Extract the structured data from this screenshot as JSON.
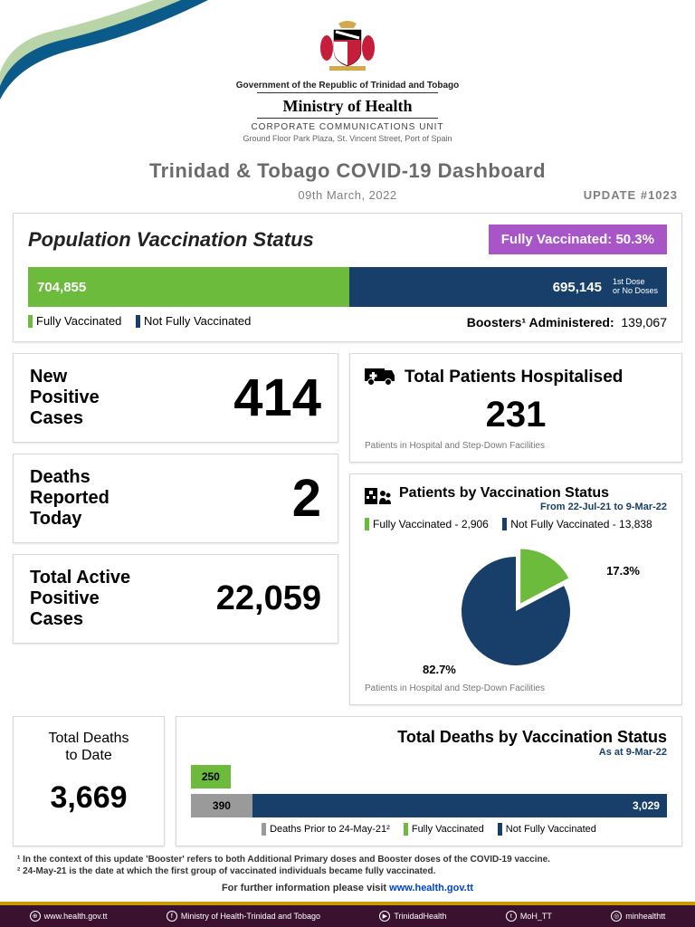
{
  "header": {
    "gov_line": "Government of the Republic of Trinidad and Tobago",
    "ministry": "Ministry of Health",
    "corp_unit": "CORPORATE COMMUNICATIONS UNIT",
    "address": "Ground Floor Park Plaza, St. Vincent Street, Port of Spain"
  },
  "dashboard": {
    "title": "Trinidad & Tobago COVID-19 Dashboard",
    "date": "09th March, 2022",
    "update": "UPDATE #1023"
  },
  "colors": {
    "green": "#6cbb3c",
    "navy": "#173f6a",
    "gray": "#9a9a9a",
    "purple": "#a855c7"
  },
  "vax_status": {
    "title": "Population Vaccination Status",
    "badge": "Fully Vaccinated: 50.3%",
    "fully_count": "704,855",
    "fully_pct": 50.3,
    "not_fully_count": "695,145",
    "not_fully_label": "1st Dose\nor No Doses",
    "leg_fully": "Fully Vaccinated",
    "leg_not": "Not Fully Vaccinated",
    "booster_label": "Boosters¹ Administered:",
    "booster_count": "139,067"
  },
  "cards": {
    "new_positive": {
      "label": "New\nPositive\nCases",
      "value": "414"
    },
    "deaths_today": {
      "label": "Deaths\nReported\nToday",
      "value": "2"
    },
    "active": {
      "label": "Total Active\nPositive\nCases",
      "value": "22,059"
    },
    "hospitalised": {
      "title": "Total Patients Hospitalised",
      "value": "231",
      "note": "Patients in Hospital and Step-Down Facilities"
    }
  },
  "pvs": {
    "title": "Patients by Vaccination Status",
    "date_range": "From 22-Jul-21 to 9-Mar-22",
    "fully_label": "Fully Vaccinated - 2,906",
    "not_fully_label": "Not Fully Vaccinated - 13,838",
    "fully_pct_label": "17.3%",
    "not_fully_pct_label": "82.7%",
    "fully_pct": 17.3,
    "note": "Patients in Hospital and Step-Down Facilities"
  },
  "total_deaths": {
    "label": "Total Deaths\nto Date",
    "value": "3,669"
  },
  "dvs": {
    "title": "Total Deaths by Vaccination Status",
    "as_at": "As at 9-Mar-22",
    "bars": {
      "fully": {
        "value": 250,
        "label": "250",
        "pct": 8.3
      },
      "prior": {
        "value": 390,
        "label": "390",
        "pct": 12.9
      },
      "not_fully": {
        "value": 3029,
        "label": "3,029",
        "pct": 100
      }
    },
    "leg_prior": "Deaths Prior to 24-May-21²",
    "leg_fully": "Fully Vaccinated",
    "leg_not": "Not Fully Vaccinated"
  },
  "footnotes": {
    "f1": "¹ In the context of this update 'Booster' refers to both Additional Primary doses and Booster doses of the COVID-19 vaccine.",
    "f2": "² 24-May-21 is the date at which the first group of vaccinated individuals became fully vaccinated."
  },
  "footer": {
    "info_prefix": "For further information please visit ",
    "info_link": "www.health.gov.tt",
    "items": [
      "www.health.gov.tt",
      "Ministry of Health-Trinidad and Tobago",
      "TrinidadHealth",
      "MoH_TT",
      "minhealthtt"
    ]
  }
}
